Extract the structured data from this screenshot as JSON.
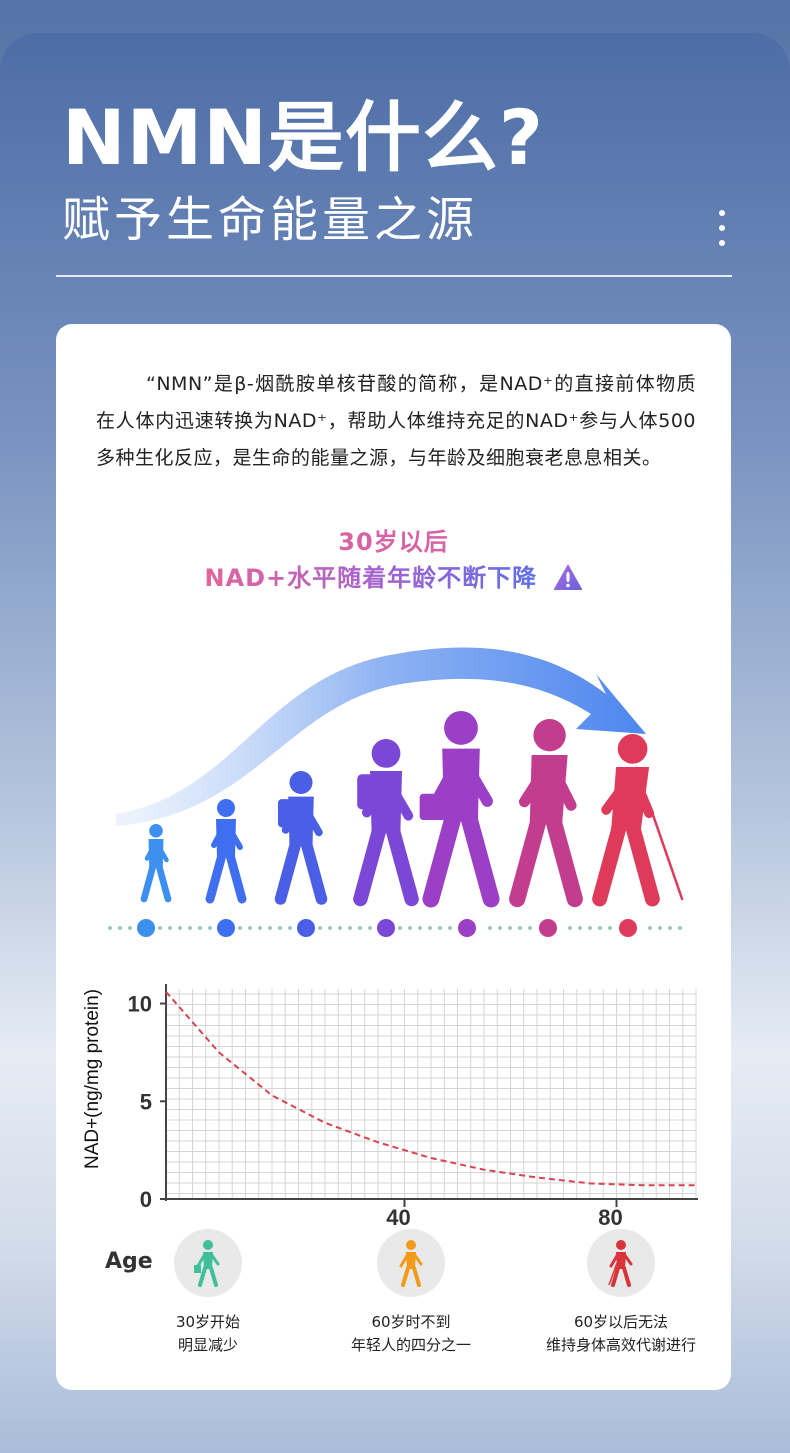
{
  "header": {
    "title": "NMN是什么?",
    "subtitle": "赋予生命能量之源"
  },
  "intro": "“NMN”是β-烟酰胺单核苷酸的简称，是NAD⁺的直接前体物质在人体内迅速转换为NAD⁺，帮助人体维持充足的NAD⁺参与人体500多种生化反应，是生命的能量之源，与年龄及细胞衰老息息相关。",
  "headline": {
    "line1": "30岁以后",
    "line2": "NAD+水平随着年龄不断下降"
  },
  "figure": {
    "silhouette_colors": [
      "#3d8ff0",
      "#3f6ff0",
      "#4a5ee6",
      "#7a47d6",
      "#9a3fc6",
      "#c23d8d",
      "#de3b5a"
    ],
    "dot_colors": [
      "#3d8ff0",
      "#3f6ff0",
      "#4a5ee6",
      "#7a47d6",
      "#9a3fc6",
      "#c23d8d",
      "#de3b5a"
    ],
    "arrow_color": "#4d86ee"
  },
  "chart_data": {
    "type": "line",
    "ylabel": "NAD+(ng/mg protein)",
    "xlabel": "",
    "y_ticks": [
      "10",
      "5",
      "0"
    ],
    "x_ticks": [
      "40",
      "80"
    ],
    "ylim": [
      0,
      11
    ],
    "xlim": [
      0,
      100
    ],
    "series": [
      {
        "x": [
          0,
          10,
          20,
          30,
          40,
          50,
          60,
          70,
          80,
          90,
          100
        ],
        "values": [
          10.6,
          7.5,
          5.3,
          3.9,
          2.9,
          2.1,
          1.5,
          1.1,
          0.8,
          0.7,
          0.7
        ],
        "color": "#d64550",
        "style": "dashed"
      }
    ],
    "grid": true
  },
  "age": {
    "label": "Age",
    "stages": [
      {
        "line1": "30岁开始",
        "line2": "明显减少",
        "color": "#3fbf9a"
      },
      {
        "line1": "60岁时不到",
        "line2": "年轻人的四分之一",
        "color": "#f29a1c"
      },
      {
        "line1": "60岁以后无法",
        "line2": "维持身体高效代谢进行",
        "color": "#d8353a"
      }
    ]
  }
}
